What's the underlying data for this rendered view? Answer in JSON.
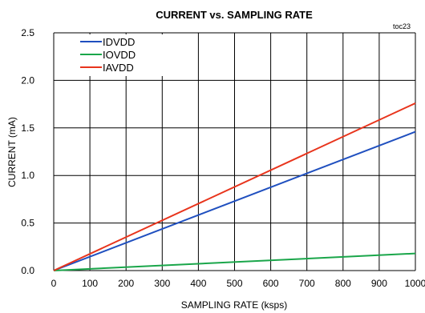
{
  "chart_data": {
    "type": "line",
    "title": "CURRENT vs. SAMPLING RATE",
    "figure_code": "toc23",
    "xlabel": "SAMPLING RATE (ksps)",
    "ylabel": "CURRENT (mA)",
    "xlim": [
      0,
      1000
    ],
    "ylim": [
      0,
      2.5
    ],
    "x_ticks": [
      0,
      100,
      200,
      300,
      400,
      500,
      600,
      700,
      800,
      900,
      1000
    ],
    "y_ticks": [
      0.0,
      0.5,
      1.0,
      1.5,
      2.0,
      2.5
    ],
    "x_tick_labels": [
      "0",
      "100",
      "200",
      "300",
      "400",
      "500",
      "600",
      "700",
      "800",
      "900",
      "1000"
    ],
    "y_tick_labels": [
      "0.0",
      "0.5",
      "1.0",
      "1.5",
      "2.0",
      "2.5"
    ],
    "grid": true,
    "legend_position": "top-left",
    "series": [
      {
        "name": "IDVDD",
        "color": "#1f4fbf",
        "x": [
          0,
          1000
        ],
        "y": [
          0,
          1.46
        ]
      },
      {
        "name": "IOVDD",
        "color": "#1aa64a",
        "x": [
          0,
          1000
        ],
        "y": [
          0,
          0.18
        ]
      },
      {
        "name": "IAVDD",
        "color": "#e8341c",
        "x": [
          0,
          1000
        ],
        "y": [
          0,
          1.76
        ]
      }
    ]
  }
}
